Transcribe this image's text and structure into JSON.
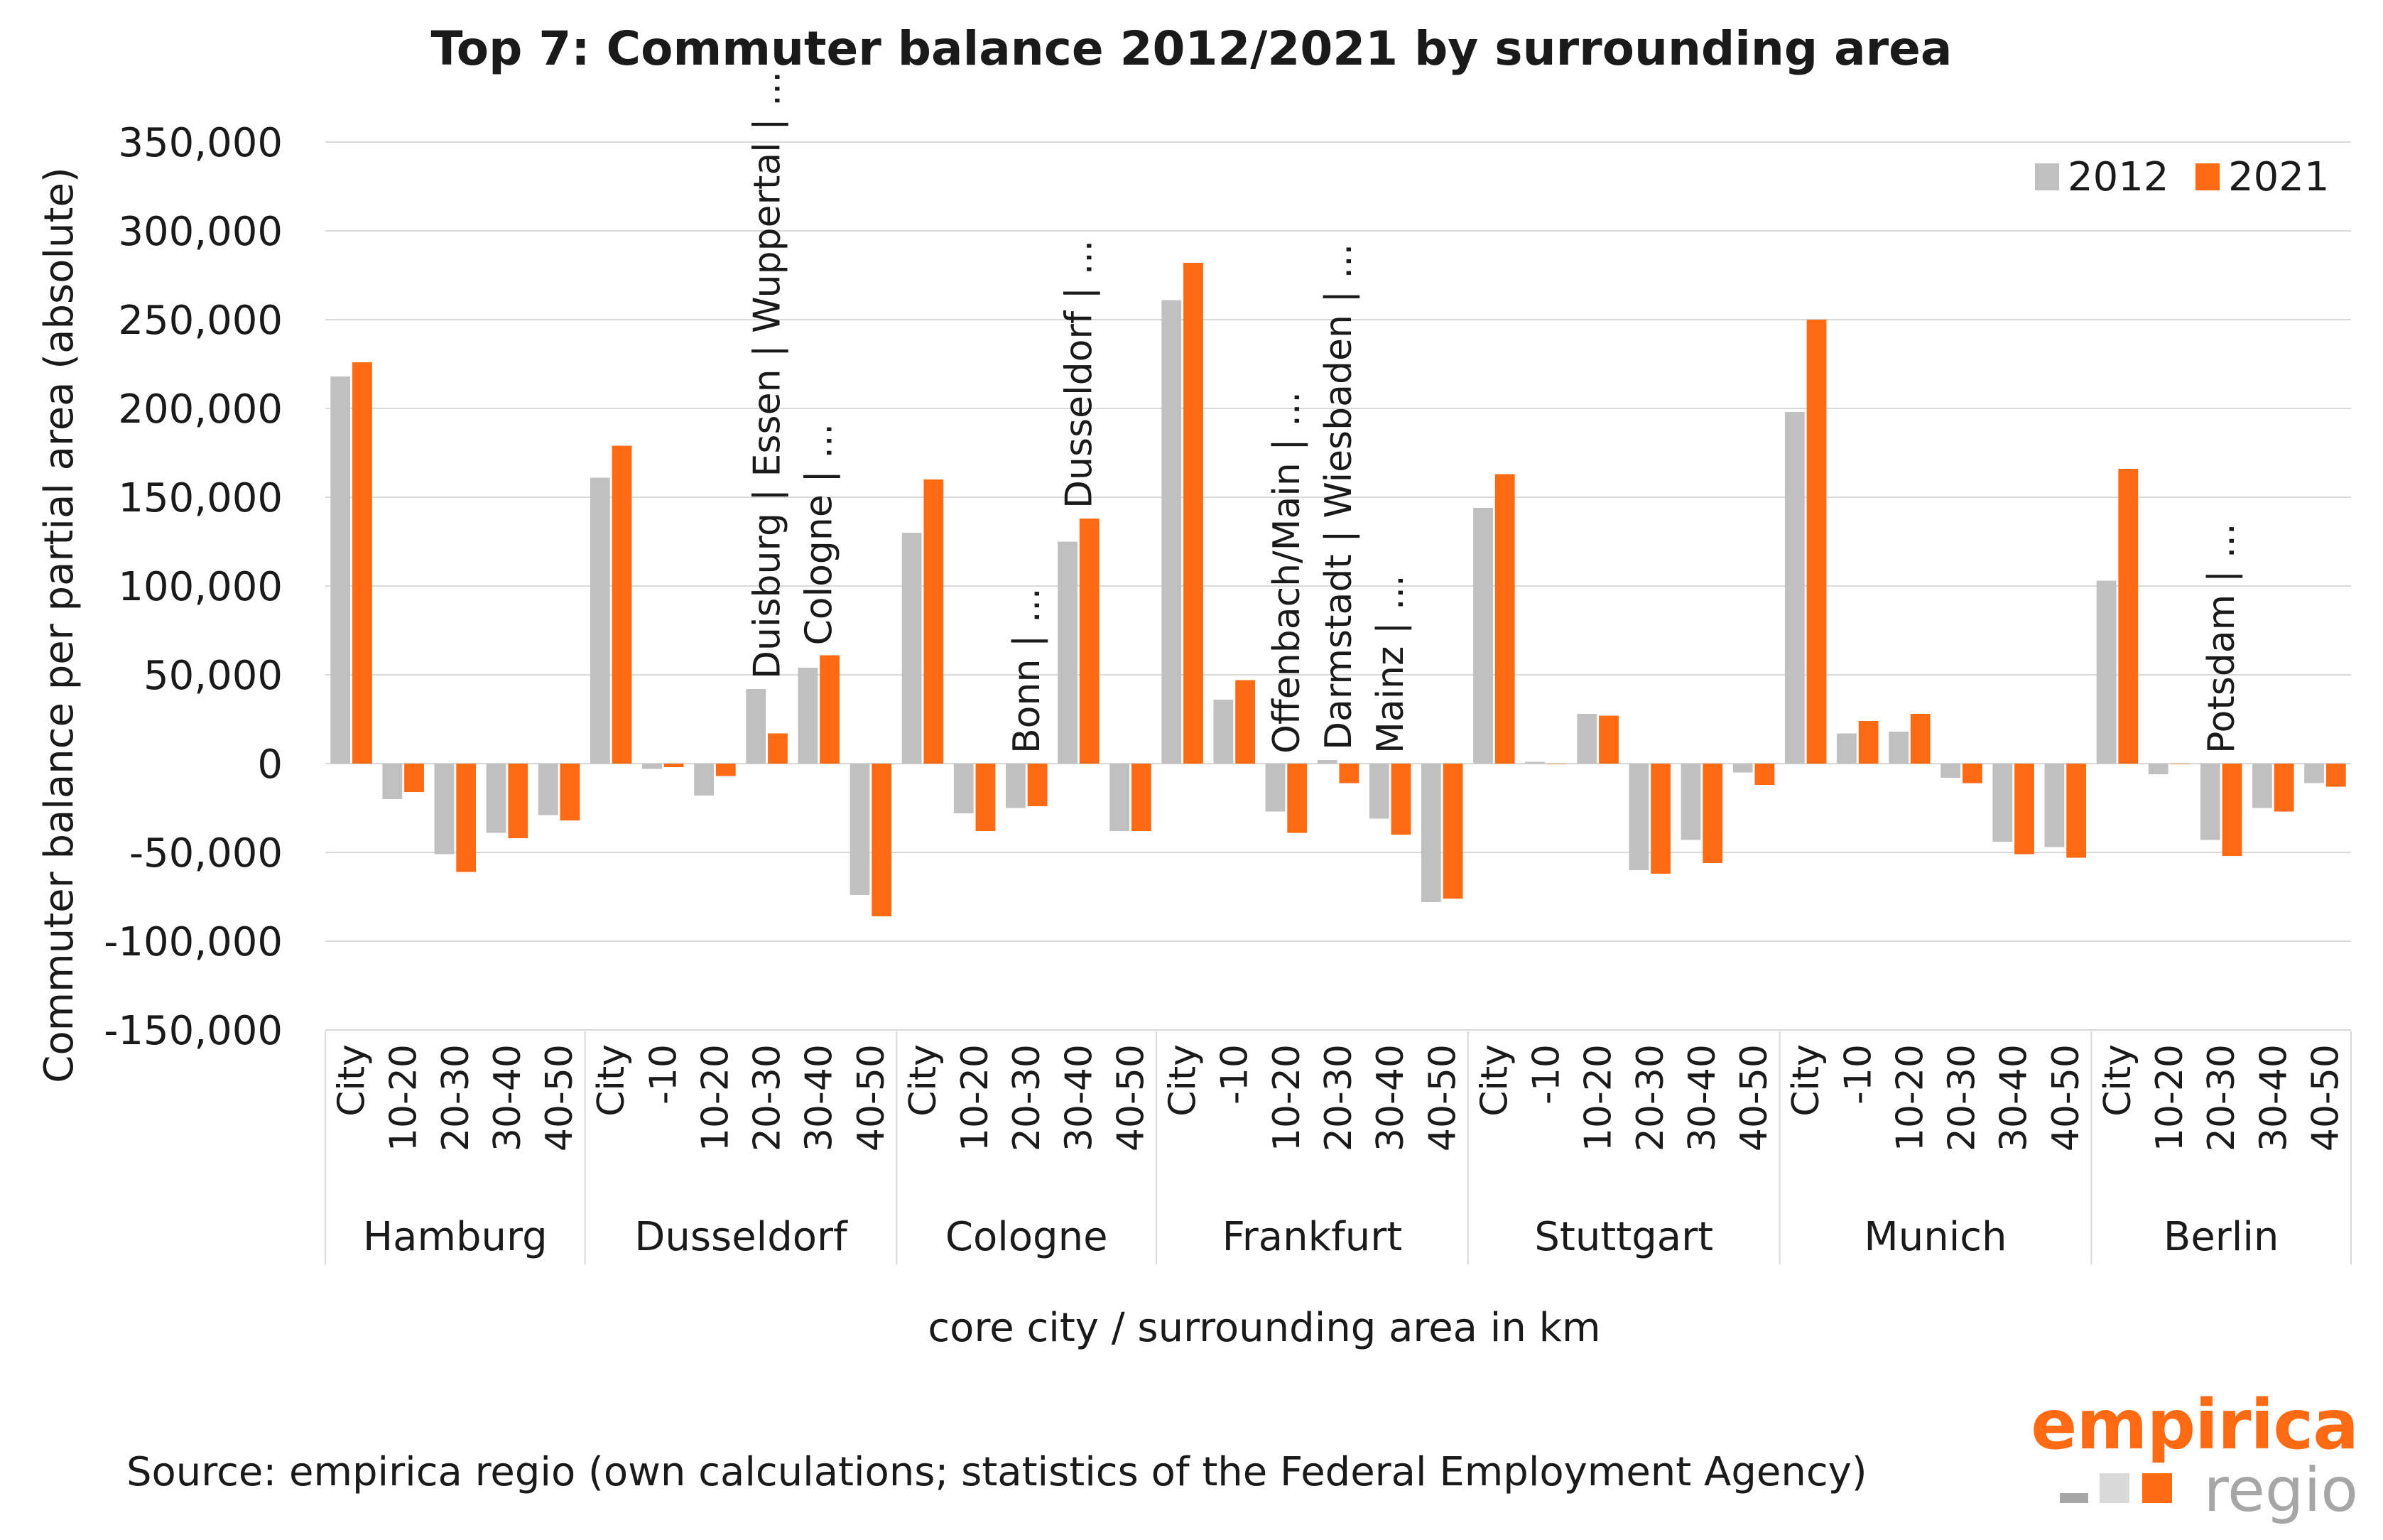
{
  "chart_data": {
    "type": "bar",
    "title": "Top 7: Commuter balance 2012/2021 by surrounding area",
    "xlabel": "core city / surrounding area in km",
    "ylabel": "Commuter balance per partial area (absolute)",
    "ylim": [
      -150000,
      350000
    ],
    "y_ticks": [
      -150000,
      -100000,
      -50000,
      0,
      50000,
      100000,
      150000,
      200000,
      250000,
      300000,
      350000
    ],
    "y_tick_labels": [
      "-150,000",
      "-100,000",
      "-50,000",
      "0",
      "50,000",
      "100,000",
      "150,000",
      "200,000",
      "250,000",
      "300,000",
      "350,000"
    ],
    "grid": true,
    "legend": {
      "placement": "top-right"
    },
    "series": [
      {
        "name": "2012",
        "color": "#c0c0c0"
      },
      {
        "name": "2021",
        "color": "#ff6a13"
      }
    ],
    "groups": [
      {
        "name": "Hamburg",
        "categories": [
          {
            "label": "City",
            "values": [
              218000,
              226000
            ]
          },
          {
            "label": "10-20",
            "values": [
              -20000,
              -16000
            ]
          },
          {
            "label": "20-30",
            "values": [
              -51000,
              -61000
            ]
          },
          {
            "label": "30-40",
            "values": [
              -39000,
              -42000
            ]
          },
          {
            "label": "40-50",
            "values": [
              -29000,
              -32000
            ]
          }
        ]
      },
      {
        "name": "Dusseldorf",
        "categories": [
          {
            "label": "City",
            "values": [
              161000,
              179000
            ]
          },
          {
            "label": "-10",
            "values": [
              -3000,
              -2000
            ]
          },
          {
            "label": "10-20",
            "values": [
              -18000,
              -7000
            ]
          },
          {
            "label": "20-30",
            "values": [
              42000,
              17000
            ],
            "annotation": "Duisburg | Essen | Wuppertal | ..."
          },
          {
            "label": "30-40",
            "values": [
              54000,
              61000
            ],
            "annotation": "Cologne | ..."
          },
          {
            "label": "40-50",
            "values": [
              -74000,
              -86000
            ]
          }
        ]
      },
      {
        "name": "Cologne",
        "categories": [
          {
            "label": "City",
            "values": [
              130000,
              160000
            ]
          },
          {
            "label": "10-20",
            "values": [
              -28000,
              -38000
            ]
          },
          {
            "label": "20-30",
            "values": [
              -25000,
              -24000
            ],
            "annotation": "Bonn | ..."
          },
          {
            "label": "30-40",
            "values": [
              125000,
              138000
            ],
            "annotation": "Dusseldorf | ..."
          },
          {
            "label": "40-50",
            "values": [
              -38000,
              -38000
            ]
          }
        ]
      },
      {
        "name": "Frankfurt",
        "categories": [
          {
            "label": "City",
            "values": [
              261000,
              282000
            ]
          },
          {
            "label": "-10",
            "values": [
              36000,
              47000
            ]
          },
          {
            "label": "10-20",
            "values": [
              -27000,
              -39000
            ],
            "annotation": "Offenbach/Main | ..."
          },
          {
            "label": "20-30",
            "values": [
              2000,
              -11000
            ],
            "annotation": "Darmstadt | Wiesbaden | ..."
          },
          {
            "label": "30-40",
            "values": [
              -31000,
              -40000
            ],
            "annotation": "Mainz | ..."
          },
          {
            "label": "40-50",
            "values": [
              -78000,
              -76000
            ]
          }
        ]
      },
      {
        "name": "Stuttgart",
        "categories": [
          {
            "label": "City",
            "values": [
              144000,
              163000
            ]
          },
          {
            "label": "-10",
            "values": [
              1000,
              0
            ]
          },
          {
            "label": "10-20",
            "values": [
              28000,
              27000
            ]
          },
          {
            "label": "20-30",
            "values": [
              -60000,
              -62000
            ]
          },
          {
            "label": "30-40",
            "values": [
              -43000,
              -56000
            ]
          },
          {
            "label": "40-50",
            "values": [
              -5000,
              -12000
            ]
          }
        ]
      },
      {
        "name": "Munich",
        "categories": [
          {
            "label": "City",
            "values": [
              198000,
              250000
            ]
          },
          {
            "label": "-10",
            "values": [
              17000,
              24000
            ]
          },
          {
            "label": "10-20",
            "values": [
              18000,
              28000
            ]
          },
          {
            "label": "20-30",
            "values": [
              -8000,
              -11000
            ]
          },
          {
            "label": "30-40",
            "values": [
              -44000,
              -51000
            ]
          },
          {
            "label": "40-50",
            "values": [
              -47000,
              -53000
            ]
          }
        ]
      },
      {
        "name": "Berlin",
        "categories": [
          {
            "label": "City",
            "values": [
              103000,
              166000
            ]
          },
          {
            "label": "10-20",
            "values": [
              -6000,
              0
            ]
          },
          {
            "label": "20-30",
            "values": [
              -43000,
              -52000
            ],
            "annotation": "Potsdam | ..."
          },
          {
            "label": "30-40",
            "values": [
              -25000,
              -27000
            ]
          },
          {
            "label": "40-50",
            "values": [
              -11000,
              -13000
            ]
          }
        ]
      }
    ]
  },
  "source_note": "Source: empirica regio (own calculations;  statistics of the Federal Employment Agency)",
  "logo": {
    "line1": "empirica",
    "line2": "regio",
    "accent": "#ff6a13",
    "muted": "#a6a6a6"
  }
}
